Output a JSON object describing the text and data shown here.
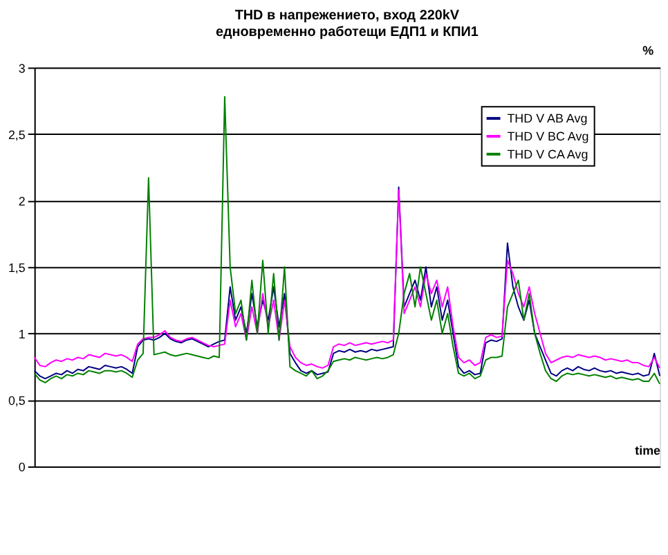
{
  "chart_data": {
    "type": "line",
    "title": [
      "THD в напрежението, вход 220kV",
      "едновременно работещи ЕДП1 и КПИ1"
    ],
    "xlabel": "time",
    "ylabel": "%",
    "categories": [
      null,
      null,
      null,
      null,
      null,
      null,
      null,
      null,
      null,
      null,
      null,
      null,
      null,
      null,
      null,
      null,
      null,
      null,
      null,
      null,
      null,
      null,
      null,
      null,
      null,
      null,
      null,
      null,
      null,
      null,
      null,
      null,
      null,
      null,
      null,
      null,
      null,
      null,
      null,
      null,
      null,
      null,
      null,
      null,
      null,
      null,
      null,
      null,
      null,
      null,
      null,
      null,
      null,
      null,
      null,
      null,
      null,
      null,
      null,
      null,
      null,
      null,
      null,
      null,
      null,
      null,
      null,
      null,
      null,
      null,
      null,
      null,
      null,
      null,
      null,
      null,
      null,
      null,
      null,
      null,
      null,
      null,
      null,
      null,
      null,
      null,
      null,
      null,
      null,
      null,
      null,
      null,
      null,
      null,
      null,
      null,
      null,
      null,
      null,
      null,
      null,
      null,
      null,
      null,
      null,
      null,
      null,
      null,
      null,
      null,
      null,
      null,
      null,
      null,
      null,
      null
    ],
    "series": [
      {
        "name": "THD V AB Avg",
        "color": "#000080",
        "values": [
          0.72,
          0.68,
          0.66,
          0.68,
          0.7,
          0.69,
          0.72,
          0.7,
          0.73,
          0.72,
          0.75,
          0.74,
          0.73,
          0.76,
          0.75,
          0.74,
          0.75,
          0.73,
          0.7,
          0.9,
          0.95,
          0.96,
          0.95,
          0.97,
          1.0,
          0.96,
          0.94,
          0.93,
          0.95,
          0.96,
          0.94,
          0.92,
          0.9,
          0.92,
          0.94,
          0.95,
          1.35,
          1.1,
          1.2,
          1.0,
          1.3,
          1.05,
          1.25,
          1.1,
          1.35,
          1.05,
          1.3,
          0.85,
          0.78,
          0.72,
          0.7,
          0.72,
          0.69,
          0.7,
          0.71,
          0.85,
          0.87,
          0.86,
          0.88,
          0.86,
          0.87,
          0.86,
          0.88,
          0.87,
          0.88,
          0.89,
          0.9,
          2.1,
          1.2,
          1.3,
          1.4,
          1.25,
          1.5,
          1.2,
          1.35,
          1.1,
          1.25,
          1.0,
          0.75,
          0.7,
          0.72,
          0.69,
          0.7,
          0.93,
          0.95,
          0.94,
          0.96,
          1.68,
          1.35,
          1.2,
          1.1,
          1.25,
          1.0,
          0.9,
          0.8,
          0.7,
          0.68,
          0.72,
          0.74,
          0.72,
          0.75,
          0.73,
          0.72,
          0.74,
          0.72,
          0.71,
          0.72,
          0.7,
          0.71,
          0.7,
          0.69,
          0.7,
          0.68,
          0.69,
          0.85,
          0.68
        ]
      },
      {
        "name": "THD V BC Avg",
        "color": "#ff00ff",
        "values": [
          0.82,
          0.76,
          0.75,
          0.78,
          0.8,
          0.79,
          0.81,
          0.8,
          0.82,
          0.81,
          0.84,
          0.83,
          0.82,
          0.85,
          0.84,
          0.83,
          0.84,
          0.82,
          0.79,
          0.92,
          0.96,
          0.97,
          0.97,
          0.99,
          1.02,
          0.97,
          0.95,
          0.94,
          0.96,
          0.97,
          0.95,
          0.93,
          0.91,
          0.9,
          0.91,
          0.92,
          1.25,
          1.05,
          1.15,
          0.95,
          1.2,
          1.0,
          1.3,
          1.05,
          1.25,
          0.95,
          1.25,
          0.9,
          0.82,
          0.78,
          0.76,
          0.77,
          0.75,
          0.74,
          0.76,
          0.9,
          0.92,
          0.91,
          0.93,
          0.91,
          0.92,
          0.93,
          0.92,
          0.93,
          0.94,
          0.93,
          0.95,
          2.08,
          1.15,
          1.25,
          1.35,
          1.2,
          1.45,
          1.3,
          1.4,
          1.2,
          1.35,
          1.05,
          0.82,
          0.78,
          0.8,
          0.76,
          0.78,
          0.97,
          0.99,
          0.97,
          0.98,
          1.55,
          1.45,
          1.3,
          1.2,
          1.35,
          1.15,
          1.0,
          0.85,
          0.78,
          0.8,
          0.82,
          0.83,
          0.82,
          0.84,
          0.83,
          0.82,
          0.83,
          0.82,
          0.8,
          0.81,
          0.8,
          0.79,
          0.8,
          0.78,
          0.78,
          0.76,
          0.75,
          0.82,
          0.74
        ]
      },
      {
        "name": "THD V CA Avg",
        "color": "#008000",
        "values": [
          0.7,
          0.65,
          0.63,
          0.66,
          0.68,
          0.66,
          0.69,
          0.68,
          0.7,
          0.69,
          0.72,
          0.71,
          0.7,
          0.72,
          0.72,
          0.71,
          0.72,
          0.7,
          0.67,
          0.8,
          0.85,
          2.17,
          0.84,
          0.85,
          0.86,
          0.84,
          0.83,
          0.84,
          0.85,
          0.84,
          0.83,
          0.82,
          0.81,
          0.83,
          0.82,
          2.78,
          1.5,
          1.15,
          1.25,
          0.95,
          1.4,
          1.0,
          1.55,
          1.0,
          1.45,
          0.95,
          1.5,
          0.75,
          0.72,
          0.7,
          0.68,
          0.72,
          0.66,
          0.68,
          0.72,
          0.79,
          0.8,
          0.81,
          0.8,
          0.82,
          0.81,
          0.8,
          0.81,
          0.82,
          0.81,
          0.82,
          0.84,
          1.0,
          1.3,
          1.45,
          1.2,
          1.5,
          1.3,
          1.1,
          1.25,
          1.0,
          1.15,
          0.9,
          0.7,
          0.68,
          0.7,
          0.66,
          0.68,
          0.8,
          0.82,
          0.82,
          0.83,
          1.2,
          1.3,
          1.4,
          1.1,
          1.3,
          1.0,
          0.85,
          0.72,
          0.66,
          0.64,
          0.68,
          0.7,
          0.69,
          0.7,
          0.69,
          0.68,
          0.69,
          0.68,
          0.67,
          0.68,
          0.66,
          0.67,
          0.66,
          0.65,
          0.66,
          0.64,
          0.64,
          0.7,
          0.62
        ]
      }
    ],
    "ylim": [
      0,
      3
    ],
    "yticks": [
      0,
      {
        "value": 0.5,
        "label": "0,5"
      },
      1,
      {
        "value": 1.5,
        "label": "1,5"
      },
      2,
      {
        "value": 2.5,
        "label": "2,5"
      },
      3
    ],
    "grid": "y",
    "legend": "top right",
    "tick_labels": "y",
    "line_style": "solid"
  }
}
